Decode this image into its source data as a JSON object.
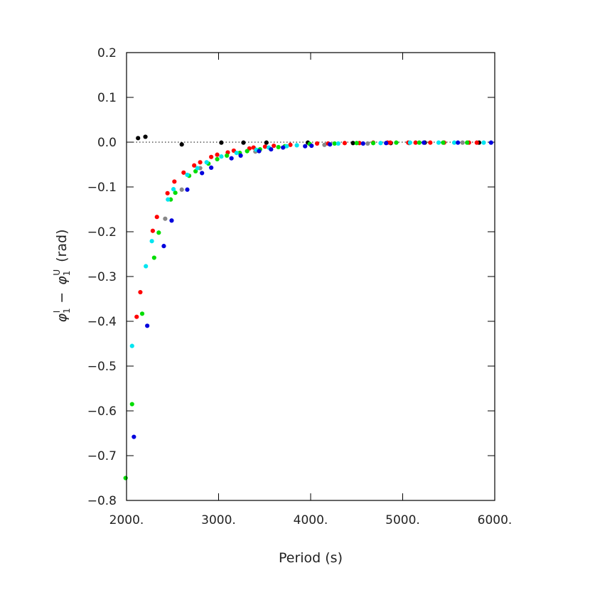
{
  "chart_data": {
    "type": "scatter",
    "title": "",
    "xlabel": "Period (s)",
    "ylabel": {
      "sym_a": "φ",
      "sub_a": "1",
      "sup_a": "I",
      "minus": "−",
      "sym_b": "φ",
      "sub_b": "1",
      "sup_b": "U",
      "unit": "(rad)"
    },
    "xlim": [
      2000,
      6000
    ],
    "ylim": [
      -0.8,
      0.2
    ],
    "x_ticks": [
      2000,
      3000,
      4000,
      5000,
      6000
    ],
    "x_tick_labels": [
      "2000.",
      "3000.",
      "4000.",
      "5000.",
      "6000."
    ],
    "y_ticks": [
      -0.8,
      -0.7,
      -0.6,
      -0.5,
      -0.4,
      -0.3,
      -0.2,
      -0.1,
      0.0,
      0.1,
      0.2
    ],
    "y_tick_labels": [
      "−0.8",
      "−0.7",
      "−0.6",
      "−0.5",
      "−0.4",
      "−0.3",
      "−0.2",
      "−0.1",
      "0.0",
      "0.1",
      "0.2"
    ],
    "reference_line": {
      "y": 0,
      "style": "dotted"
    },
    "grid": false,
    "series": [
      {
        "color": "#000000",
        "points": [
          [
            2125,
            0.009
          ],
          [
            2205,
            0.012
          ],
          [
            2600,
            -0.005
          ],
          [
            3030,
            -0.001
          ],
          [
            3270,
            -0.001
          ],
          [
            3520,
            -0.001
          ],
          [
            3970,
            -0.001
          ],
          [
            4460,
            -0.002
          ],
          [
            4870,
            -0.002
          ],
          [
            5240,
            -0.001
          ],
          [
            5830,
            -0.001
          ]
        ]
      },
      {
        "color": "#888888",
        "points": [
          [
            2600,
            -0.106
          ],
          [
            2420,
            -0.171
          ],
          [
            2800,
            -0.058
          ],
          [
            3400,
            -0.021
          ],
          [
            4150,
            -0.006
          ],
          [
            4620,
            -0.003
          ],
          [
            5070,
            -0.002
          ],
          [
            5650,
            -0.001
          ]
        ]
      },
      {
        "color": "#ff0000",
        "points": [
          [
            2110,
            -0.39
          ],
          [
            2150,
            -0.335
          ],
          [
            2285,
            -0.198
          ],
          [
            2330,
            -0.167
          ],
          [
            2445,
            -0.114
          ],
          [
            2520,
            -0.088
          ],
          [
            2620,
            -0.068
          ],
          [
            2735,
            -0.052
          ],
          [
            2800,
            -0.045
          ],
          [
            2920,
            -0.033
          ],
          [
            2985,
            -0.028
          ],
          [
            3100,
            -0.023
          ],
          [
            3165,
            -0.019
          ],
          [
            3335,
            -0.014
          ],
          [
            3380,
            -0.012
          ],
          [
            3505,
            -0.01
          ],
          [
            3600,
            -0.008
          ],
          [
            3780,
            -0.006
          ],
          [
            4070,
            -0.003
          ],
          [
            4190,
            -0.003
          ],
          [
            4370,
            -0.002
          ],
          [
            4530,
            -0.002
          ],
          [
            4680,
            -0.001
          ],
          [
            4835,
            -0.001
          ],
          [
            4865,
            -0.001
          ],
          [
            5060,
            -0.001
          ],
          [
            5140,
            -0.001
          ],
          [
            5300,
            -0.001
          ],
          [
            5450,
            -0.001
          ],
          [
            5720,
            -0.001
          ],
          [
            5805,
            -0.001
          ]
        ]
      },
      {
        "color": "#00dd00",
        "points": [
          [
            1990,
            -0.75
          ],
          [
            2060,
            -0.585
          ],
          [
            2170,
            -0.383
          ],
          [
            2300,
            -0.258
          ],
          [
            2350,
            -0.202
          ],
          [
            2480,
            -0.128
          ],
          [
            2530,
            -0.113
          ],
          [
            2680,
            -0.075
          ],
          [
            2750,
            -0.065
          ],
          [
            2890,
            -0.048
          ],
          [
            2985,
            -0.038
          ],
          [
            3090,
            -0.03
          ],
          [
            3230,
            -0.024
          ],
          [
            3310,
            -0.02
          ],
          [
            3450,
            -0.016
          ],
          [
            3650,
            -0.011
          ],
          [
            3720,
            -0.009
          ],
          [
            3990,
            -0.004
          ],
          [
            4260,
            -0.003
          ],
          [
            4500,
            -0.002
          ],
          [
            4680,
            -0.002
          ],
          [
            4930,
            -0.001
          ],
          [
            5180,
            -0.001
          ],
          [
            5440,
            -0.001
          ],
          [
            5700,
            -0.001
          ]
        ]
      },
      {
        "color": "#00e5f0",
        "points": [
          [
            2060,
            -0.455
          ],
          [
            2210,
            -0.277
          ],
          [
            2275,
            -0.221
          ],
          [
            2450,
            -0.128
          ],
          [
            2510,
            -0.105
          ],
          [
            2660,
            -0.073
          ],
          [
            2770,
            -0.058
          ],
          [
            2870,
            -0.045
          ],
          [
            3030,
            -0.032
          ],
          [
            3195,
            -0.024
          ],
          [
            3410,
            -0.017
          ],
          [
            3545,
            -0.012
          ],
          [
            3740,
            -0.009
          ],
          [
            3850,
            -0.007
          ],
          [
            4300,
            -0.003
          ],
          [
            4760,
            -0.002
          ],
          [
            5080,
            -0.001
          ],
          [
            5390,
            -0.001
          ],
          [
            5560,
            -0.001
          ],
          [
            5880,
            -0.001
          ]
        ]
      },
      {
        "color": "#0000dd",
        "points": [
          [
            2080,
            -0.658
          ],
          [
            2225,
            -0.41
          ],
          [
            2405,
            -0.232
          ],
          [
            2490,
            -0.175
          ],
          [
            2660,
            -0.106
          ],
          [
            2820,
            -0.069
          ],
          [
            2920,
            -0.057
          ],
          [
            3140,
            -0.036
          ],
          [
            3240,
            -0.03
          ],
          [
            3440,
            -0.02
          ],
          [
            3570,
            -0.016
          ],
          [
            3700,
            -0.012
          ],
          [
            3940,
            -0.009
          ],
          [
            4010,
            -0.008
          ],
          [
            4210,
            -0.005
          ],
          [
            4570,
            -0.003
          ],
          [
            4820,
            -0.002
          ],
          [
            5230,
            -0.001
          ],
          [
            5600,
            -0.001
          ],
          [
            5960,
            -0.001
          ]
        ]
      }
    ]
  }
}
